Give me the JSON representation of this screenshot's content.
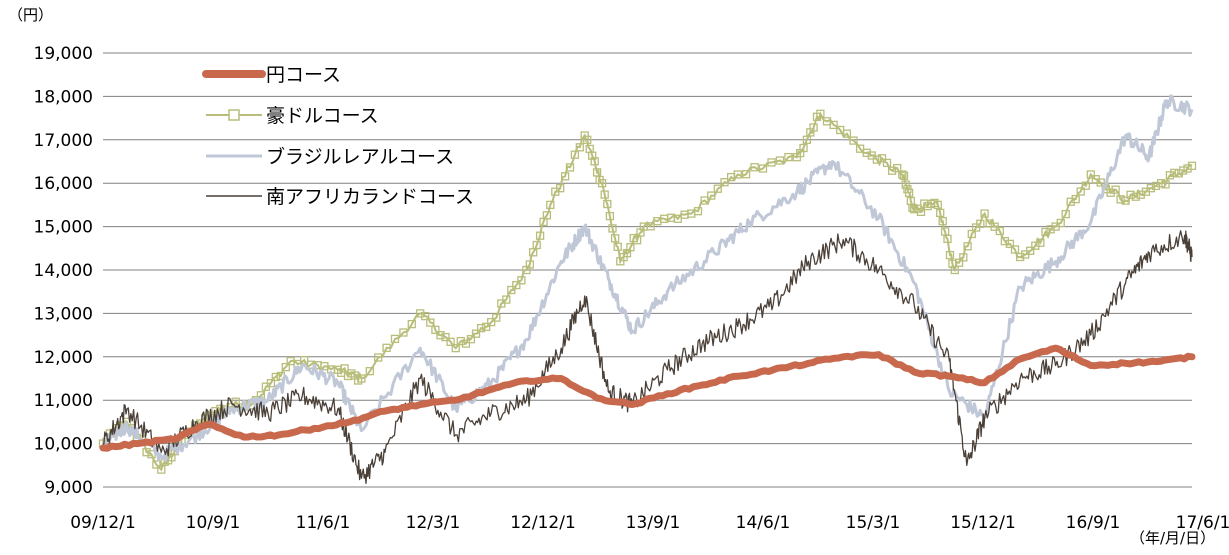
{
  "chart_data": {
    "type": "line",
    "y_unit_label": "（円）",
    "x_unit_label": "（年/月/日）",
    "ylim": [
      9000,
      19000
    ],
    "y_ticks": [
      "19,000",
      "18,000",
      "17,000",
      "16,000",
      "15,000",
      "14,000",
      "13,000",
      "12,000",
      "11,000",
      "10,000",
      "9,000"
    ],
    "y_tick_values": [
      19000,
      18000,
      17000,
      16000,
      15000,
      14000,
      13000,
      12000,
      11000,
      10000,
      9000
    ],
    "x_ticks": [
      "09/12/1",
      "10/9/1",
      "11/6/1",
      "12/3/1",
      "12/12/1",
      "13/9/1",
      "14/6/1",
      "15/3/1",
      "15/12/1",
      "16/9/1",
      "17/6/1"
    ],
    "x_range": [
      "2009-12-01",
      "2017-08-20"
    ],
    "grid": "horizontal",
    "legend_position": "top-left",
    "series": [
      {
        "name": "円コース",
        "color": "#c8694d",
        "style": "thick-line",
        "x": [
          "2009-12-01",
          "2010-03-01",
          "2010-06-01",
          "2010-09-01",
          "2010-12-01",
          "2011-03-01",
          "2011-06-01",
          "2011-09-01",
          "2011-12-01",
          "2012-03-01",
          "2012-06-01",
          "2012-09-01",
          "2012-12-01",
          "2013-03-01",
          "2013-06-01",
          "2013-09-01",
          "2013-12-01",
          "2014-03-01",
          "2014-06-01",
          "2014-09-01",
          "2014-12-01",
          "2015-03-01",
          "2015-06-01",
          "2015-09-01",
          "2015-12-01",
          "2016-03-01",
          "2016-06-01",
          "2016-09-01",
          "2016-12-01",
          "2017-03-01",
          "2017-06-01",
          "2017-08-20"
        ],
        "values": [
          9900,
          10000,
          10100,
          10450,
          10150,
          10200,
          10350,
          10500,
          10750,
          10900,
          11000,
          11250,
          11450,
          11500,
          11050,
          10900,
          11150,
          11350,
          11550,
          11700,
          11850,
          12000,
          12050,
          11650,
          11550,
          11400,
          11950,
          12200,
          11800,
          11850,
          11900,
          12000
        ]
      },
      {
        "name": "豪ドルコース",
        "color": "#b8bd7a",
        "style": "square-markers",
        "x": [
          "2009-12-01",
          "2010-02-01",
          "2010-05-01",
          "2010-07-01",
          "2010-10-01",
          "2011-01-01",
          "2011-04-01",
          "2011-08-01",
          "2011-10-01",
          "2012-03-01",
          "2012-06-01",
          "2012-09-01",
          "2012-12-01",
          "2013-02-01",
          "2013-05-01",
          "2013-06-15",
          "2013-08-01",
          "2013-10-01",
          "2014-02-01",
          "2014-06-01",
          "2014-11-01",
          "2015-01-01",
          "2015-05-01",
          "2015-08-01",
          "2015-09-01",
          "2015-11-01",
          "2015-12-15",
          "2016-03-01",
          "2016-06-01",
          "2016-09-01",
          "2016-12-01",
          "2017-03-01",
          "2017-06-01",
          "2017-08-20"
        ],
        "values": [
          10000,
          10500,
          9400,
          10200,
          10800,
          11000,
          11900,
          11700,
          11500,
          13000,
          12200,
          12800,
          14000,
          15500,
          17100,
          16000,
          14200,
          15000,
          15300,
          16200,
          16600,
          17600,
          16700,
          16200,
          15400,
          15500,
          14000,
          15300,
          14300,
          15000,
          16200,
          15600,
          16000,
          16400
        ]
      },
      {
        "name": "ブラジルレアルコース",
        "color": "#c0c8d8",
        "style": "line",
        "x": [
          "2009-12-01",
          "2010-02-01",
          "2010-05-01",
          "2010-08-01",
          "2010-11-01",
          "2011-02-01",
          "2011-05-01",
          "2011-08-01",
          "2011-10-01",
          "2012-03-01",
          "2012-06-01",
          "2012-09-01",
          "2012-12-01",
          "2013-03-01",
          "2013-05-01",
          "2013-07-01",
          "2013-09-01",
          "2013-12-01",
          "2014-04-01",
          "2014-07-01",
          "2014-11-01",
          "2015-02-01",
          "2015-06-01",
          "2015-09-01",
          "2015-12-01",
          "2016-03-01",
          "2016-06-01",
          "2016-09-01",
          "2016-12-01",
          "2017-03-01",
          "2017-05-01",
          "2017-06-15",
          "2017-08-20"
        ],
        "values": [
          10000,
          10400,
          9700,
          10200,
          10800,
          11000,
          11800,
          11400,
          10300,
          12200,
          10800,
          11400,
          12400,
          14200,
          15000,
          13800,
          12600,
          13500,
          14400,
          15100,
          15800,
          16500,
          15200,
          13700,
          11200,
          10600,
          13600,
          14200,
          15100,
          17100,
          16600,
          17900,
          17700
        ]
      },
      {
        "name": "南アフリカランドコース",
        "color": "#4a4038",
        "style": "thin-line",
        "x": [
          "2009-12-01",
          "2010-02-01",
          "2010-05-01",
          "2010-08-01",
          "2010-11-01",
          "2011-02-01",
          "2011-05-01",
          "2011-08-01",
          "2011-10-01",
          "2011-12-01",
          "2012-03-01",
          "2012-06-01",
          "2012-09-01",
          "2012-12-01",
          "2013-03-01",
          "2013-05-01",
          "2013-07-01",
          "2013-09-01",
          "2013-12-01",
          "2014-03-01",
          "2014-06-01",
          "2014-09-01",
          "2014-12-01",
          "2015-03-01",
          "2015-06-01",
          "2015-09-01",
          "2015-12-01",
          "2016-01-15",
          "2016-03-01",
          "2016-06-01",
          "2016-09-01",
          "2016-12-01",
          "2017-03-01",
          "2017-05-01",
          "2017-08-01",
          "2017-08-20"
        ],
        "values": [
          10000,
          10800,
          9800,
          10500,
          10900,
          10700,
          11100,
          10800,
          9200,
          9800,
          11500,
          10200,
          10700,
          11000,
          12200,
          13400,
          11200,
          10900,
          11700,
          12300,
          12700,
          13200,
          14200,
          14700,
          14000,
          13200,
          11900,
          9500,
          10600,
          11500,
          11800,
          12500,
          13700,
          14400,
          14800,
          14300
        ]
      }
    ]
  }
}
